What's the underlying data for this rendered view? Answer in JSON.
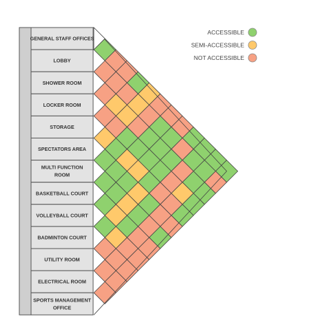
{
  "legend": {
    "items": [
      {
        "label": "ACCESSIBLE",
        "status": "A",
        "color": "#8fd16e"
      },
      {
        "label": "SEMI-ACCESSIBLE",
        "status": "S",
        "color": "#ffc96b"
      },
      {
        "label": "NOT ACCESSIBLE",
        "status": "N",
        "color": "#f7a184"
      }
    ]
  },
  "colors": {
    "sidebar": "#cfcfcf",
    "label_box": "#e3e3e3",
    "outline": "#555555",
    "cell_stroke": "#444444"
  },
  "rooms": [
    {
      "label": [
        "GENERAL STAFF OFFICES"
      ]
    },
    {
      "label": [
        "LOBBY"
      ]
    },
    {
      "label": [
        "SHOWER ROOM"
      ]
    },
    {
      "label": [
        "LOCKER ROOM"
      ]
    },
    {
      "label": [
        "STORAGE"
      ]
    },
    {
      "label": [
        "SPECTATORS AREA"
      ]
    },
    {
      "label": [
        "MULTI FUNCTION",
        "ROOM"
      ]
    },
    {
      "label": [
        "BASKETBALL COURT"
      ]
    },
    {
      "label": [
        "VOLLEYBALL COURT"
      ]
    },
    {
      "label": [
        "BADMINTON COURT"
      ]
    },
    {
      "label": [
        "UTILITY ROOM"
      ]
    },
    {
      "label": [
        "ELECTRICAL ROOM"
      ]
    },
    {
      "label": [
        "SPORTS MANAGEMENT",
        "OFFICE"
      ]
    }
  ],
  "matrix": [
    [
      "A",
      "N",
      "N",
      "A",
      "S",
      "N",
      "N",
      "N",
      "A",
      "A",
      "A",
      "A"
    ],
    [
      "N",
      "N",
      "N",
      "S",
      "N",
      "A",
      "A",
      "N",
      "A",
      "A",
      "N"
    ],
    [
      "N",
      "S",
      "S",
      "N",
      "A",
      "A",
      "A",
      "N",
      "A",
      "A"
    ],
    [
      "N",
      "N",
      "A",
      "A",
      "A",
      "A",
      "N",
      "S",
      "A"
    ],
    [
      "S",
      "A",
      "S",
      "S",
      "A",
      "N",
      "N",
      "A"
    ],
    [
      "A",
      "A",
      "A",
      "S",
      "A",
      "N",
      "N"
    ],
    [
      "A",
      "A",
      "S",
      "A",
      "N",
      "A"
    ],
    [
      "A",
      "S",
      "A",
      "N",
      "N"
    ],
    [
      "A",
      "S",
      "N",
      "N"
    ],
    [
      "N",
      "N",
      "N"
    ],
    [
      "N",
      "N"
    ],
    [
      "N"
    ]
  ]
}
